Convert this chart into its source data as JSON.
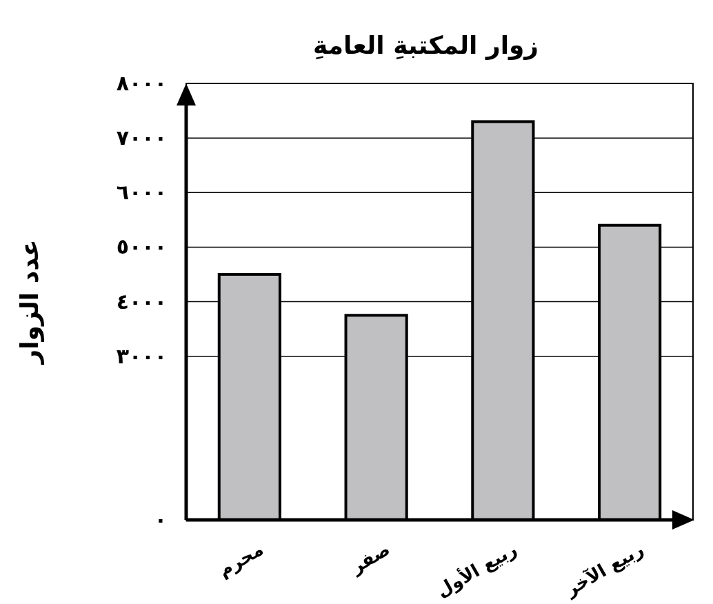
{
  "chart_data": {
    "type": "bar",
    "title": "زوار المكتبةِ العامةِ",
    "ylabel": "عدد الزوار",
    "categories": [
      "محرم",
      "صفر",
      "ربيع الأول",
      "ربيع الآخر"
    ],
    "values": [
      4500,
      3750,
      7300,
      5400
    ],
    "color": "#c0c0c2",
    "ylim": [
      0,
      8000
    ],
    "yticks": [
      {
        "value": 0,
        "label": "٠"
      },
      {
        "value": 3000,
        "label": "٣٠٠٠"
      },
      {
        "value": 4000,
        "label": "٤٠٠٠"
      },
      {
        "value": 5000,
        "label": "٥٠٠٠"
      },
      {
        "value": 6000,
        "label": "٦٠٠٠"
      },
      {
        "value": 7000,
        "label": "٧٠٠٠"
      },
      {
        "value": 8000,
        "label": "٨٠٠٠"
      }
    ],
    "grid": "y"
  }
}
